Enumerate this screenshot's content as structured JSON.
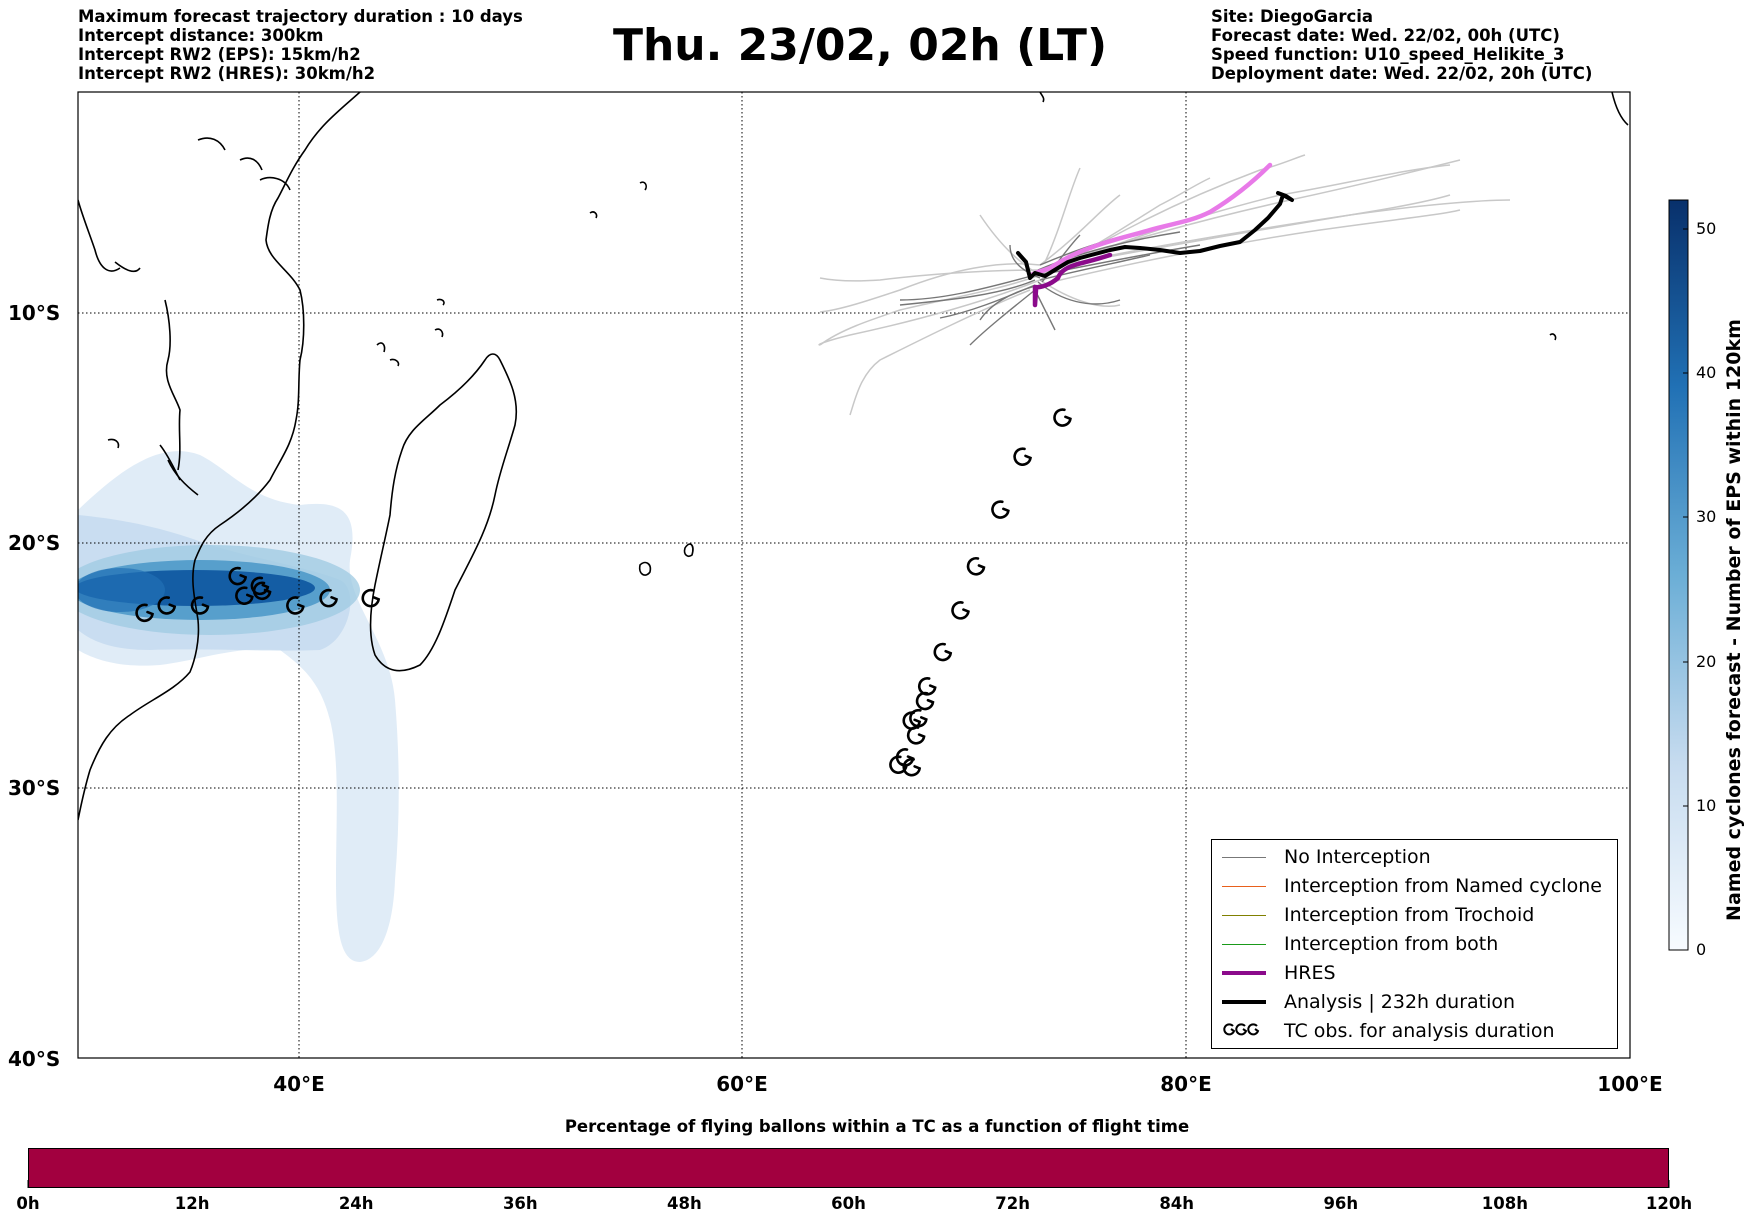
{
  "header": {
    "left": [
      "Maximum forecast trajectory duration : 10 days",
      "Intercept distance: 300km",
      "Intercept RW2 (EPS):  15km/h2",
      "Intercept RW2 (HRES): 30km/h2"
    ],
    "title": "Thu. 23/02, 02h (LT)",
    "right": [
      "Site: DiegoGarcia",
      "Forecast date: Wed. 22/02, 00h (UTC)",
      "Speed function: U10_speed_Helikite_3",
      "Deployment date: Wed. 22/02, 20h (UTC)"
    ]
  },
  "map": {
    "lon_range": [
      30,
      100
    ],
    "lat_range": [
      -40,
      -0.5
    ],
    "lat_ticks": [
      {
        "value": -10,
        "label": "10°S"
      },
      {
        "value": -20,
        "label": "20°S"
      },
      {
        "value": -30,
        "label": "30°S"
      },
      {
        "value": -40,
        "label": "40°S"
      }
    ],
    "lon_ticks": [
      {
        "value": 40,
        "label": "40°E"
      },
      {
        "value": 60,
        "label": "60°E"
      },
      {
        "value": 80,
        "label": "80°E"
      },
      {
        "value": 100,
        "label": "100°E"
      }
    ],
    "colors": {
      "no_interception": "#777777",
      "named_cyclone": "#e8601c",
      "trochoid": "#808000",
      "both": "#1a9a1a",
      "hres": "#8b0a8b",
      "hres_later": "#e87ae8",
      "analysis": "#000000",
      "ensemble_faint": "#c8c8c8"
    },
    "tc_obs": [
      [
        74.4,
        -14.6
      ],
      [
        72.6,
        -16.3
      ],
      [
        71.6,
        -18.6
      ],
      [
        70.5,
        -21.0
      ],
      [
        69.8,
        -22.8
      ],
      [
        69.0,
        -24.5
      ],
      [
        68.3,
        -25.9
      ],
      [
        68.2,
        -26.5
      ],
      [
        67.9,
        -27.2
      ],
      [
        67.6,
        -27.3
      ],
      [
        67.8,
        -27.9
      ],
      [
        67.3,
        -28.8
      ],
      [
        67.0,
        -29.1
      ],
      [
        67.6,
        -29.2
      ],
      [
        33.0,
        -22.9
      ],
      [
        34.0,
        -22.6
      ],
      [
        35.5,
        -22.6
      ],
      [
        37.2,
        -21.4
      ],
      [
        37.5,
        -22.2
      ],
      [
        38.2,
        -21.8
      ],
      [
        38.3,
        -22.0
      ],
      [
        39.8,
        -22.6
      ],
      [
        41.3,
        -22.3
      ],
      [
        43.2,
        -22.3
      ]
    ]
  },
  "legend": {
    "items": [
      {
        "label": "No Interception",
        "color": "#777777",
        "width": 1.2
      },
      {
        "label": "Interception from Named cyclone",
        "color": "#e8601c",
        "width": 1.2
      },
      {
        "label": "Interception from Trochoid",
        "color": "#808000",
        "width": 1.2
      },
      {
        "label": "Interception from both",
        "color": "#1a9a1a",
        "width": 1.2
      },
      {
        "label": "HRES",
        "color": "#8b0a8b",
        "width": 4
      },
      {
        "label": "Analysis | 232h duration",
        "color": "#000000",
        "width": 4
      },
      {
        "label": "TC obs. for analysis duration",
        "symbol": "ccc"
      }
    ]
  },
  "colorbar": {
    "title": "Named cyclones forecast - Number of EPS within 120km",
    "range": [
      0,
      52
    ],
    "ticks": [
      0,
      10,
      20,
      30,
      40,
      50
    ],
    "color_low": "#deebf7",
    "color_high": "#08306b"
  },
  "bottom": {
    "title": "Percentage of flying ballons within a TC as a function of flight time",
    "ticks": [
      "0h",
      "12h",
      "24h",
      "36h",
      "48h",
      "60h",
      "72h",
      "84h",
      "96h",
      "108h",
      "120h"
    ],
    "bar_color": "#a2003f"
  }
}
